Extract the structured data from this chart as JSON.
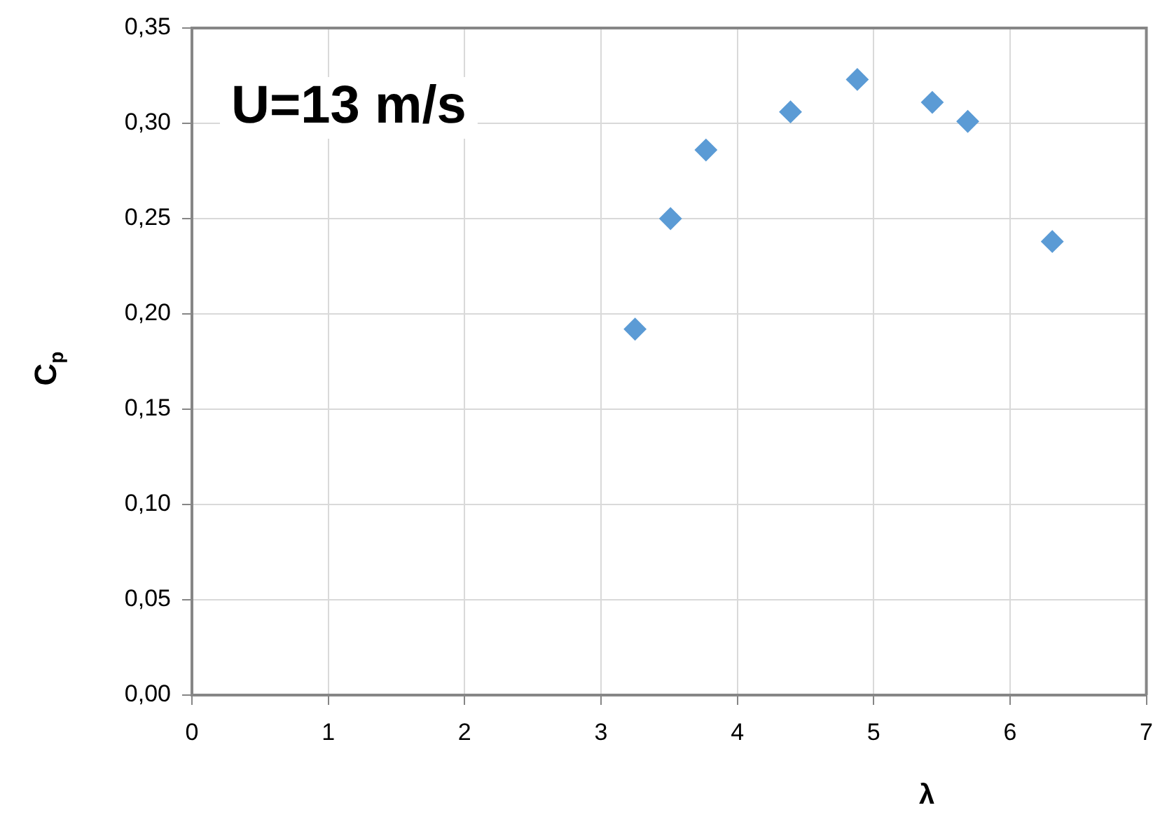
{
  "chart_data": {
    "type": "scatter",
    "xlabel": "λ",
    "ylabel": "C$_{p}$",
    "annotations": [
      "U=13 m/s"
    ],
    "series": [
      {
        "color": "#5b9bd5",
        "x": [
          3.25,
          3.51,
          3.77,
          4.39,
          4.88,
          5.43,
          5.69,
          6.31
        ],
        "values": [
          0.192,
          0.25,
          0.286,
          0.306,
          0.323,
          0.311,
          0.301,
          0.238
        ]
      }
    ],
    "xlim": [
      0,
      7
    ],
    "xticks": [
      0,
      1,
      2,
      3,
      4,
      5,
      6,
      7
    ],
    "ylim": [
      0,
      0.35
    ],
    "yticks": [
      {
        "value": 0,
        "label": "0,00"
      },
      {
        "value": 0.05,
        "label": "0,05"
      },
      {
        "value": 0.1,
        "label": "0,10"
      },
      {
        "value": 0.15,
        "label": "0,15"
      },
      {
        "value": 0.2,
        "label": "0,20"
      },
      {
        "value": 0.25,
        "label": "0,25"
      },
      {
        "value": 0.3,
        "label": "0,30"
      },
      {
        "value": 0.35,
        "label": "0,35"
      }
    ],
    "grid": true,
    "marker": "diamond",
    "legend": false
  }
}
